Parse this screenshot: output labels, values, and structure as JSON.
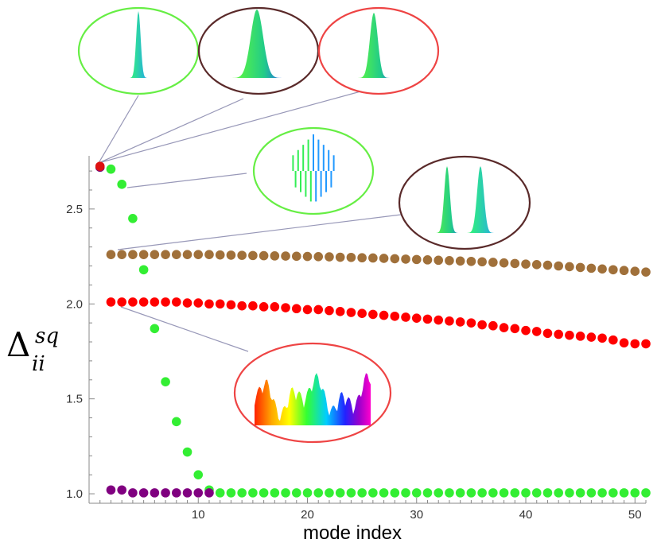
{
  "chart_data": {
    "type": "scatter",
    "title": "",
    "xlabel": "mode  index",
    "ylabel": {
      "main": "Δ",
      "sup": "sq",
      "sub": "ii"
    },
    "xlim": [
      0,
      51
    ],
    "ylim": [
      0.95,
      2.78
    ],
    "x_ticks": [
      "10",
      "20",
      "30",
      "40",
      "50"
    ],
    "y_ticks": [
      "1.0",
      "1.5",
      "2.0",
      "2.5"
    ],
    "series": [
      {
        "color": "#a0703a",
        "points": [
          [
            2,
            2.26
          ],
          [
            3,
            2.26
          ],
          [
            4,
            2.26
          ],
          [
            5,
            2.26
          ],
          [
            6,
            2.26
          ],
          [
            7,
            2.26
          ],
          [
            8,
            2.26
          ],
          [
            9,
            2.26
          ],
          [
            10,
            2.26
          ],
          [
            11,
            2.26
          ],
          [
            12,
            2.258
          ],
          [
            13,
            2.257
          ],
          [
            14,
            2.256
          ],
          [
            15,
            2.255
          ],
          [
            16,
            2.254
          ],
          [
            17,
            2.253
          ],
          [
            18,
            2.252
          ],
          [
            19,
            2.251
          ],
          [
            20,
            2.25
          ],
          [
            21,
            2.249
          ],
          [
            22,
            2.248
          ],
          [
            23,
            2.246
          ],
          [
            24,
            2.245
          ],
          [
            25,
            2.243
          ],
          [
            26,
            2.242
          ],
          [
            27,
            2.24
          ],
          [
            28,
            2.238
          ],
          [
            29,
            2.236
          ],
          [
            30,
            2.234
          ],
          [
            31,
            2.232
          ],
          [
            32,
            2.23
          ],
          [
            33,
            2.228
          ],
          [
            34,
            2.226
          ],
          [
            35,
            2.224
          ],
          [
            36,
            2.222
          ],
          [
            37,
            2.219
          ],
          [
            38,
            2.216
          ],
          [
            39,
            2.213
          ],
          [
            40,
            2.21
          ],
          [
            41,
            2.207
          ],
          [
            42,
            2.204
          ],
          [
            43,
            2.2
          ],
          [
            44,
            2.196
          ],
          [
            45,
            2.192
          ],
          [
            46,
            2.188
          ],
          [
            47,
            2.184
          ],
          [
            48,
            2.18
          ],
          [
            49,
            2.176
          ],
          [
            50,
            2.172
          ],
          [
            51,
            2.168
          ]
        ]
      },
      {
        "color": "#ff0000",
        "points": [
          [
            2,
            2.01
          ],
          [
            3,
            2.01
          ],
          [
            4,
            2.01
          ],
          [
            5,
            2.01
          ],
          [
            6,
            2.01
          ],
          [
            7,
            2.01
          ],
          [
            8,
            2.01
          ],
          [
            9,
            2.005
          ],
          [
            10,
            2.005
          ],
          [
            11,
            2.0
          ],
          [
            12,
            2.0
          ],
          [
            13,
            1.995
          ],
          [
            14,
            1.99
          ],
          [
            15,
            1.99
          ],
          [
            16,
            1.985
          ],
          [
            17,
            1.985
          ],
          [
            18,
            1.98
          ],
          [
            19,
            1.975
          ],
          [
            20,
            1.97
          ],
          [
            21,
            1.97
          ],
          [
            22,
            1.965
          ],
          [
            23,
            1.96
          ],
          [
            24,
            1.955
          ],
          [
            25,
            1.95
          ],
          [
            26,
            1.945
          ],
          [
            27,
            1.94
          ],
          [
            28,
            1.935
          ],
          [
            29,
            1.93
          ],
          [
            30,
            1.925
          ],
          [
            31,
            1.92
          ],
          [
            32,
            1.915
          ],
          [
            33,
            1.91
          ],
          [
            34,
            1.905
          ],
          [
            35,
            1.9
          ],
          [
            36,
            1.89
          ],
          [
            37,
            1.885
          ],
          [
            38,
            1.875
          ],
          [
            39,
            1.87
          ],
          [
            40,
            1.86
          ],
          [
            41,
            1.855
          ],
          [
            42,
            1.845
          ],
          [
            43,
            1.84
          ],
          [
            44,
            1.835
          ],
          [
            45,
            1.83
          ],
          [
            46,
            1.825
          ],
          [
            47,
            1.82
          ],
          [
            48,
            1.81
          ],
          [
            49,
            1.795
          ],
          [
            50,
            1.79
          ],
          [
            51,
            1.79
          ]
        ]
      },
      {
        "color": "#33ee33",
        "points": [
          [
            1,
            2.72
          ],
          [
            2,
            2.71
          ],
          [
            3,
            2.63
          ],
          [
            4,
            2.45
          ],
          [
            5,
            2.18
          ],
          [
            6,
            1.87
          ],
          [
            7,
            1.59
          ],
          [
            8,
            1.38
          ],
          [
            9,
            1.22
          ],
          [
            10,
            1.1
          ],
          [
            11,
            1.02
          ],
          [
            12,
            1.005
          ],
          [
            13,
            1.005
          ],
          [
            14,
            1.005
          ],
          [
            15,
            1.005
          ],
          [
            16,
            1.005
          ],
          [
            17,
            1.005
          ],
          [
            18,
            1.005
          ],
          [
            19,
            1.005
          ],
          [
            20,
            1.005
          ],
          [
            21,
            1.005
          ],
          [
            22,
            1.005
          ],
          [
            23,
            1.005
          ],
          [
            24,
            1.005
          ],
          [
            25,
            1.005
          ],
          [
            26,
            1.005
          ],
          [
            27,
            1.005
          ],
          [
            28,
            1.005
          ],
          [
            29,
            1.005
          ],
          [
            30,
            1.005
          ],
          [
            31,
            1.005
          ],
          [
            32,
            1.005
          ],
          [
            33,
            1.005
          ],
          [
            34,
            1.005
          ],
          [
            35,
            1.005
          ],
          [
            36,
            1.005
          ],
          [
            37,
            1.005
          ],
          [
            38,
            1.005
          ],
          [
            39,
            1.005
          ],
          [
            40,
            1.005
          ],
          [
            41,
            1.005
          ],
          [
            42,
            1.005
          ],
          [
            43,
            1.005
          ],
          [
            44,
            1.005
          ],
          [
            45,
            1.005
          ],
          [
            46,
            1.005
          ],
          [
            47,
            1.005
          ],
          [
            48,
            1.005
          ],
          [
            49,
            1.005
          ],
          [
            50,
            1.005
          ],
          [
            51,
            1.005
          ]
        ]
      },
      {
        "color": "#800080",
        "points": [
          [
            1,
            2.72
          ],
          [
            2,
            1.02
          ],
          [
            3,
            1.02
          ],
          [
            4,
            1.005
          ],
          [
            5,
            1.005
          ],
          [
            6,
            1.005
          ],
          [
            7,
            1.005
          ],
          [
            8,
            1.005
          ],
          [
            9,
            1.005
          ],
          [
            10,
            1.005
          ],
          [
            11,
            1.005
          ]
        ]
      },
      {
        "color": "#dd1111",
        "points": [
          [
            1,
            2.725
          ]
        ]
      }
    ],
    "insets": [
      {
        "ellipse_color": "#66ee44",
        "kind": "narrow-peak",
        "fill": "#22dddd"
      },
      {
        "ellipse_color": "#5a2a2a",
        "kind": "wide-peak",
        "fill": "#22cc66"
      },
      {
        "ellipse_color": "#ee4444",
        "kind": "medium-peak",
        "fill": "#33cc55"
      },
      {
        "ellipse_color": "#66ee44",
        "kind": "oscillating",
        "fill": "#22aaff"
      },
      {
        "ellipse_color": "#5a2a2a",
        "kind": "double-peak",
        "fill": "#33aadd"
      },
      {
        "ellipse_color": "#ee4444",
        "kind": "rainbow-spectrum",
        "fill": "rainbow"
      }
    ],
    "grid": false,
    "legend": "none"
  }
}
